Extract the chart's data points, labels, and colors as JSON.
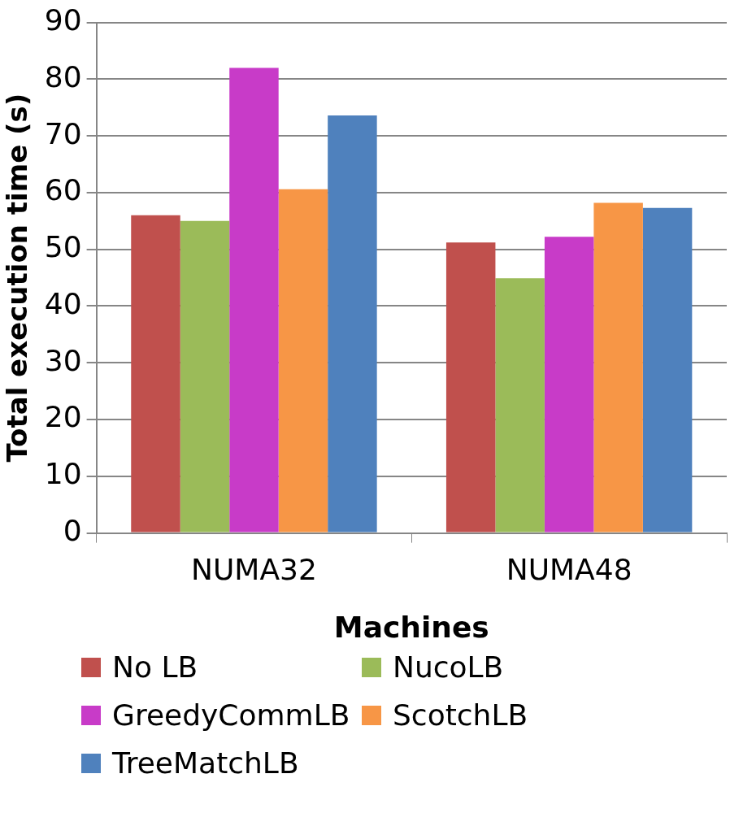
{
  "chart_data": {
    "type": "bar",
    "xlabel": "Machines",
    "ylabel": "Total execution time (s)",
    "categories": [
      "NUMA32",
      "NUMA48"
    ],
    "series": [
      {
        "name": "No LB",
        "color": "#c0504d",
        "values": [
          56,
          51.2
        ]
      },
      {
        "name": "NucoLB",
        "color": "#9bbb59",
        "values": [
          55,
          44.9
        ]
      },
      {
        "name": "GreedyCommLB",
        "color": "#c83bc8",
        "values": [
          82,
          52.2
        ]
      },
      {
        "name": "ScotchLB",
        "color": "#f79646",
        "values": [
          60.6,
          58.2
        ]
      },
      {
        "name": "TreeMatchLB",
        "color": "#4f81bd",
        "values": [
          73.6,
          57.3
        ]
      }
    ],
    "ylim": [
      0,
      90
    ],
    "yticks": [
      0,
      10,
      20,
      30,
      40,
      50,
      60,
      70,
      80,
      90
    ],
    "grid": "y",
    "legend": "bottom"
  }
}
